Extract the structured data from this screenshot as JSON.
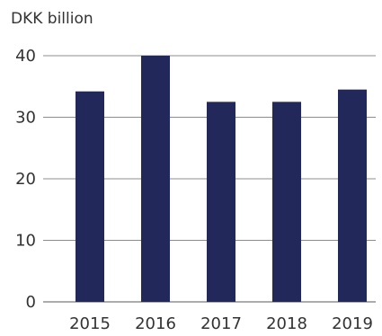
{
  "chart_data": {
    "type": "bar",
    "ylabel": "DKK billion",
    "categories": [
      "2015",
      "2016",
      "2017",
      "2018",
      "2019"
    ],
    "values": [
      34.2,
      40.0,
      32.5,
      32.5,
      34.5
    ],
    "ylim": [
      0,
      40
    ],
    "yticks": [
      0,
      10,
      20,
      30,
      40
    ],
    "grid": true,
    "bar_color": "#22285a"
  }
}
